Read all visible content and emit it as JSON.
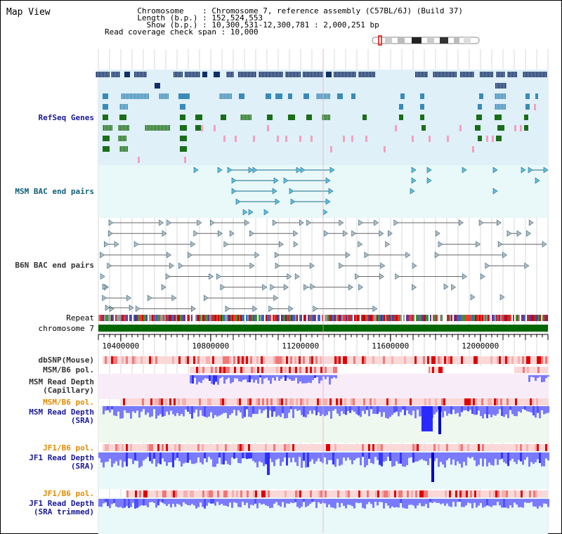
{
  "window": {
    "title": "Map View"
  },
  "info": {
    "chromosome_label": "Chromosome",
    "chromosome_value": "Chromosome 7, reference assembly (C57BL/6J) (Build 37)",
    "length_label": "Length (b.p.)",
    "length_value": "152,524,553",
    "show_label": "Show (b.p.)",
    "show_value": "10,300,531-12,300,781 : 2,000,251 bp",
    "span_label": "Read coverage check span",
    "span_value": "10,000"
  },
  "tracks": {
    "refseq": "RefSeq Genes",
    "msm_bac": "MSM BAC end pairs",
    "b6n_bac": "B6N BAC end pairs",
    "repeat": "Repeat",
    "chromosome": "chromosome 7",
    "dbsnp": "dbSNP(Mouse)",
    "msm_pol": "MSM/B6 pol.",
    "msm_depth_cap_1": "MSM Read Depth",
    "msm_depth_cap_2": "(Capillary)",
    "msm_pol2": "MSM/B6 pol.",
    "msm_depth_sra_1": "MSM Read Depth",
    "msm_depth_sra_2": "(SRA)",
    "jf1_pol": "JF1/B6 pol.",
    "jf1_depth_sra_1": "JF1 Read Depth",
    "jf1_depth_sra_2": "(SRA)",
    "jf1_pol2": "JF1/B6 pol.",
    "jf1_depth_trim_1": "JF1 Read Depth",
    "jf1_depth_trim_2": "(SRA trimmed)"
  },
  "axis": {
    "ticks": [
      "10400000",
      "10800000",
      "11200000",
      "11600000",
      "12000000"
    ],
    "tick_values": [
      10400000,
      10800000,
      11200000,
      11600000,
      12000000
    ],
    "range": [
      10300531,
      12300781
    ]
  },
  "colors": {
    "refseq_bg": "#dff0f8",
    "bac_bg": "#e9f8f8",
    "gene_dark": "#0f2f66",
    "gene_mid": "#3a8ab8",
    "gene_green": "#1a6e1a",
    "gene_pink": "#f4a0c0",
    "chromosome_bar": "#006600"
  },
  "icons": {
    "ideogram": "chromosome-ideogram-icon"
  }
}
